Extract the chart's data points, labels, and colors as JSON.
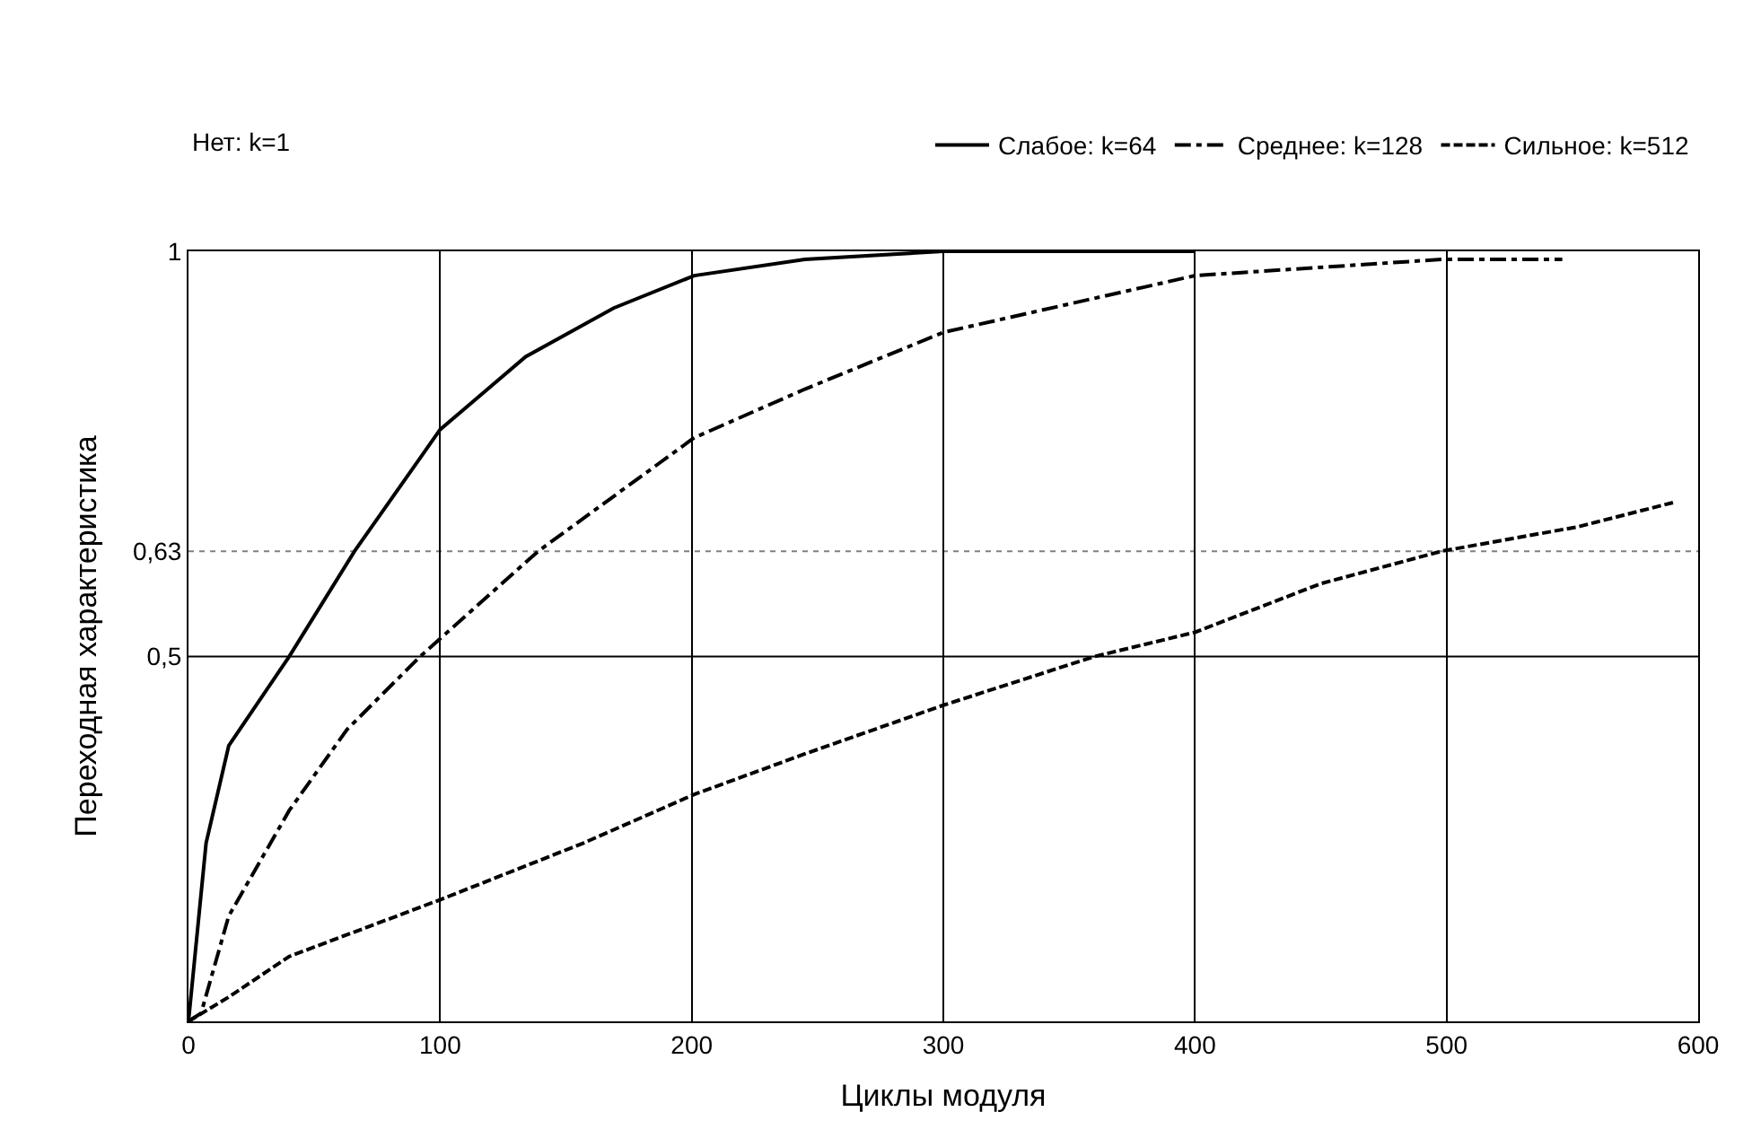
{
  "chart_data": {
    "type": "line",
    "xlabel": "Циклы модуля",
    "ylabel": "Переходная характеристика",
    "xlim": [
      0,
      600
    ],
    "xticks": [
      0,
      100,
      200,
      300,
      400,
      500,
      600
    ],
    "ylim": [
      0.05,
      1
    ],
    "yticks": [
      {
        "value": 0.5,
        "label": "0,5"
      },
      {
        "value": 0.63,
        "label": "0,63"
      },
      1
    ],
    "grid": "x",
    "legend": "top",
    "marker": "none",
    "annotations": [
      "Нет: k=1"
    ],
    "ref_lines": [
      {
        "axis": "y",
        "value": 0.5,
        "label": null,
        "color": "#000000",
        "line_style": "solid"
      },
      {
        "axis": "y",
        "value": 0.63,
        "label": null,
        "color": "#808080",
        "line_style": "dotted"
      }
    ],
    "series": [
      {
        "name": "Слабое: k=64",
        "color": "#000000",
        "line_style": "solid",
        "x": [
          0,
          7,
          16,
          40,
          66,
          100,
          134,
          169,
          201,
          245,
          300,
          400
        ],
        "values": [
          0.05,
          0.27,
          0.39,
          0.5,
          0.63,
          0.78,
          0.87,
          0.93,
          0.97,
          0.99,
          1.0,
          1.0
        ]
      },
      {
        "name": "Среднее: k=128",
        "color": "#000000",
        "line_style": "dashdot",
        "x": [
          0,
          5,
          16,
          40,
          63,
          92,
          139,
          201,
          245,
          300,
          400,
          498,
          546
        ],
        "values": [
          0.05,
          0.06,
          0.18,
          0.31,
          0.41,
          0.5,
          0.63,
          0.77,
          0.83,
          0.9,
          0.97,
          0.99,
          0.99
        ]
      },
      {
        "name": "Сильное: k=512",
        "color": "#000000",
        "line_style": "dashed",
        "x": [
          0,
          16,
          40,
          100,
          157,
          201,
          245,
          300,
          360,
          400,
          450,
          498,
          552,
          590
        ],
        "values": [
          0.05,
          0.08,
          0.13,
          0.2,
          0.27,
          0.33,
          0.38,
          0.44,
          0.5,
          0.53,
          0.59,
          0.63,
          0.66,
          0.69
        ]
      }
    ]
  }
}
